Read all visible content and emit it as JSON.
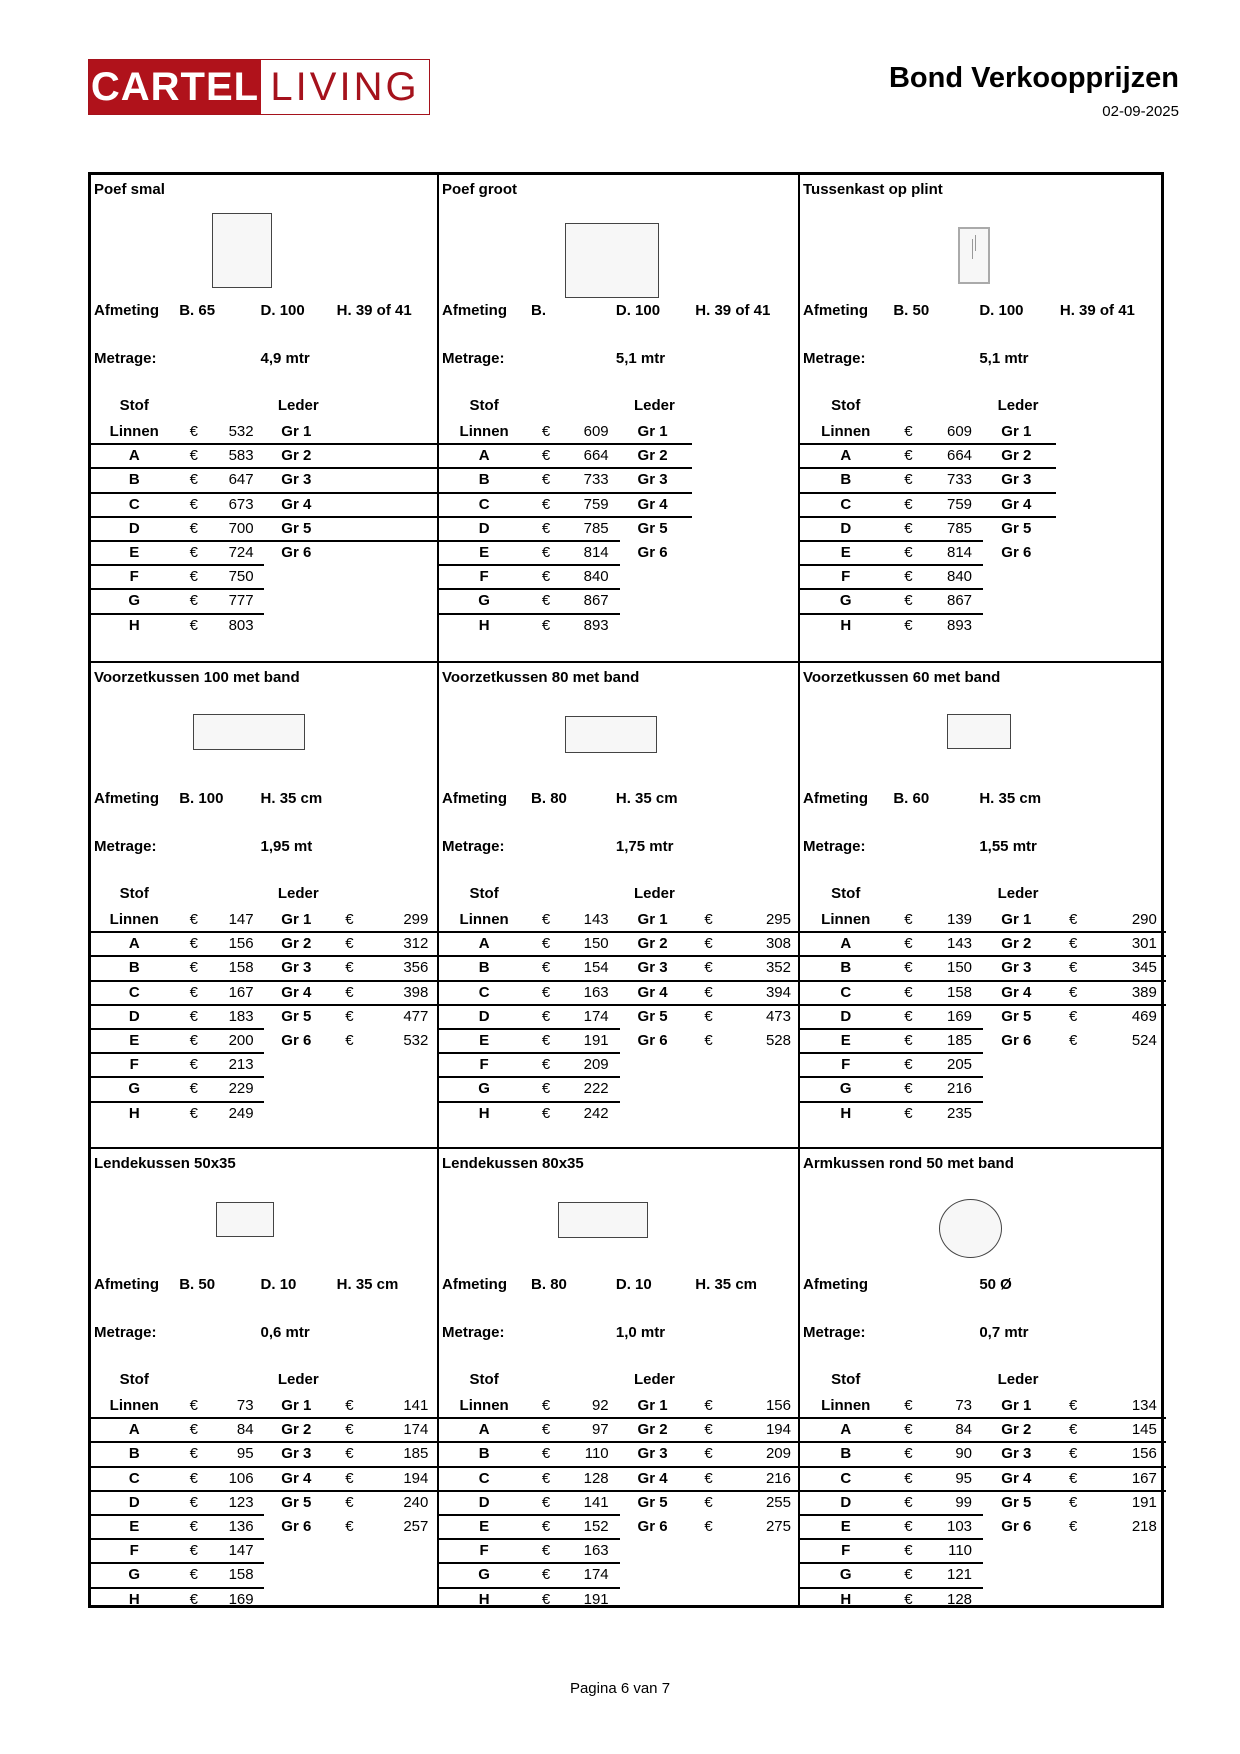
{
  "header": {
    "logo_left": "CARTEL",
    "logo_right": "LIVING",
    "title": "Bond Verkoopprijzen",
    "date": "02-09-2025"
  },
  "footer": {
    "page": "Pagina 6 van 7"
  },
  "currency": "€",
  "products": [
    {
      "title": "Poef smal",
      "shape": "rectangle",
      "afmeting": {
        "label": "Afmeting",
        "b": "B. 65",
        "d": "D. 100",
        "h": "H. 39 of 41"
      },
      "metrage": {
        "label": "Metrage:",
        "value": "4,9 mtr"
      },
      "header": {
        "stof": "Stof",
        "leder": "Leder"
      },
      "stof": [
        {
          "label": "Linnen",
          "price": "532"
        },
        {
          "label": "A",
          "price": "583"
        },
        {
          "label": "B",
          "price": "647"
        },
        {
          "label": "C",
          "price": "673"
        },
        {
          "label": "D",
          "price": "700"
        },
        {
          "label": "E",
          "price": "724"
        },
        {
          "label": "F",
          "price": "750"
        },
        {
          "label": "G",
          "price": "777"
        },
        {
          "label": "H",
          "price": "803"
        }
      ],
      "leder": [
        {
          "label": "Gr 1"
        },
        {
          "label": "Gr 2"
        },
        {
          "label": "Gr 3"
        },
        {
          "label": "Gr 4"
        },
        {
          "label": "Gr 5"
        },
        {
          "label": "Gr 6"
        }
      ]
    },
    {
      "title": "Poef groot",
      "shape": "rectangle",
      "afmeting": {
        "label": "Afmeting",
        "b": "B.",
        "d": "D. 100",
        "h": "H. 39 of 41"
      },
      "metrage": {
        "label": "Metrage:",
        "value": "5,1 mtr"
      },
      "header": {
        "stof": "Stof",
        "leder": "Leder"
      },
      "stof": [
        {
          "label": "Linnen",
          "price": "609"
        },
        {
          "label": "A",
          "price": "664"
        },
        {
          "label": "B",
          "price": "733"
        },
        {
          "label": "C",
          "price": "759"
        },
        {
          "label": "D",
          "price": "785"
        },
        {
          "label": "E",
          "price": "814"
        },
        {
          "label": "F",
          "price": "840"
        },
        {
          "label": "G",
          "price": "867"
        },
        {
          "label": "H",
          "price": "893"
        }
      ],
      "leder": [
        {
          "label": "Gr 1"
        },
        {
          "label": "Gr 2"
        },
        {
          "label": "Gr 3"
        },
        {
          "label": "Gr 4"
        },
        {
          "label": "Gr 5"
        },
        {
          "label": "Gr 6"
        }
      ]
    },
    {
      "title": "Tussenkast op plint",
      "shape": "cabinet",
      "afmeting": {
        "label": "Afmeting",
        "b": "B. 50",
        "d": "D. 100",
        "h": "H. 39 of 41"
      },
      "metrage": {
        "label": "Metrage:",
        "value": "5,1 mtr"
      },
      "header": {
        "stof": "Stof",
        "leder": "Leder"
      },
      "stof": [
        {
          "label": "Linnen",
          "price": "609"
        },
        {
          "label": "A",
          "price": "664"
        },
        {
          "label": "B",
          "price": "733"
        },
        {
          "label": "C",
          "price": "759"
        },
        {
          "label": "D",
          "price": "785"
        },
        {
          "label": "E",
          "price": "814"
        },
        {
          "label": "F",
          "price": "840"
        },
        {
          "label": "G",
          "price": "867"
        },
        {
          "label": "H",
          "price": "893"
        }
      ],
      "leder": [
        {
          "label": "Gr 1"
        },
        {
          "label": "Gr 2"
        },
        {
          "label": "Gr 3"
        },
        {
          "label": "Gr 4"
        },
        {
          "label": "Gr 5"
        },
        {
          "label": "Gr 6"
        }
      ]
    },
    {
      "title": "Voorzetkussen 100 met band",
      "shape": "rectangle",
      "afmeting": {
        "label": "Afmeting",
        "b": "B. 100",
        "d": "H. 35 cm",
        "h": ""
      },
      "metrage": {
        "label": "Metrage:",
        "value": "1,95 mt"
      },
      "header": {
        "stof": "Stof",
        "leder": "Leder"
      },
      "stof": [
        {
          "label": "Linnen",
          "price": "147"
        },
        {
          "label": "A",
          "price": "156"
        },
        {
          "label": "B",
          "price": "158"
        },
        {
          "label": "C",
          "price": "167"
        },
        {
          "label": "D",
          "price": "183"
        },
        {
          "label": "E",
          "price": "200"
        },
        {
          "label": "F",
          "price": "213"
        },
        {
          "label": "G",
          "price": "229"
        },
        {
          "label": "H",
          "price": "249"
        }
      ],
      "leder": [
        {
          "label": "Gr 1",
          "price": "299"
        },
        {
          "label": "Gr 2",
          "price": "312"
        },
        {
          "label": "Gr 3",
          "price": "356"
        },
        {
          "label": "Gr 4",
          "price": "398"
        },
        {
          "label": "Gr 5",
          "price": "477"
        },
        {
          "label": "Gr 6",
          "price": "532"
        }
      ]
    },
    {
      "title": "Voorzetkussen 80 met band",
      "shape": "rectangle",
      "afmeting": {
        "label": "Afmeting",
        "b": "B. 80",
        "d": "H. 35 cm",
        "h": ""
      },
      "metrage": {
        "label": "Metrage:",
        "value": "1,75 mtr"
      },
      "header": {
        "stof": "Stof",
        "leder": "Leder"
      },
      "stof": [
        {
          "label": "Linnen",
          "price": "143"
        },
        {
          "label": "A",
          "price": "150"
        },
        {
          "label": "B",
          "price": "154"
        },
        {
          "label": "C",
          "price": "163"
        },
        {
          "label": "D",
          "price": "174"
        },
        {
          "label": "E",
          "price": "191"
        },
        {
          "label": "F",
          "price": "209"
        },
        {
          "label": "G",
          "price": "222"
        },
        {
          "label": "H",
          "price": "242"
        }
      ],
      "leder": [
        {
          "label": "Gr 1",
          "price": "295"
        },
        {
          "label": "Gr 2",
          "price": "308"
        },
        {
          "label": "Gr 3",
          "price": "352"
        },
        {
          "label": "Gr 4",
          "price": "394"
        },
        {
          "label": "Gr 5",
          "price": "473"
        },
        {
          "label": "Gr 6",
          "price": "528"
        }
      ]
    },
    {
      "title": "Voorzetkussen 60 met band",
      "shape": "rectangle",
      "afmeting": {
        "label": "Afmeting",
        "b": "B. 60",
        "d": "H. 35 cm",
        "h": ""
      },
      "metrage": {
        "label": "Metrage:",
        "value": "1,55 mtr"
      },
      "header": {
        "stof": "Stof",
        "leder": "Leder"
      },
      "stof": [
        {
          "label": "Linnen",
          "price": "139"
        },
        {
          "label": "A",
          "price": "143"
        },
        {
          "label": "B",
          "price": "150"
        },
        {
          "label": "C",
          "price": "158"
        },
        {
          "label": "D",
          "price": "169"
        },
        {
          "label": "E",
          "price": "185"
        },
        {
          "label": "F",
          "price": "205"
        },
        {
          "label": "G",
          "price": "216"
        },
        {
          "label": "H",
          "price": "235"
        }
      ],
      "leder": [
        {
          "label": "Gr 1",
          "price": "290"
        },
        {
          "label": "Gr 2",
          "price": "301"
        },
        {
          "label": "Gr 3",
          "price": "345"
        },
        {
          "label": "Gr 4",
          "price": "389"
        },
        {
          "label": "Gr 5",
          "price": "469"
        },
        {
          "label": "Gr 6",
          "price": "524"
        }
      ]
    },
    {
      "title": "Lendekussen 50x35",
      "shape": "rectangle",
      "afmeting": {
        "label": "Afmeting",
        "b": "B. 50",
        "d": "D. 10",
        "h": "H. 35 cm"
      },
      "metrage": {
        "label": "Metrage:",
        "value": "0,6 mtr"
      },
      "header": {
        "stof": "Stof",
        "leder": "Leder"
      },
      "stof": [
        {
          "label": "Linnen",
          "price": "73"
        },
        {
          "label": "A",
          "price": "84"
        },
        {
          "label": "B",
          "price": "95"
        },
        {
          "label": "C",
          "price": "106"
        },
        {
          "label": "D",
          "price": "123"
        },
        {
          "label": "E",
          "price": "136"
        },
        {
          "label": "F",
          "price": "147"
        },
        {
          "label": "G",
          "price": "158"
        },
        {
          "label": "H",
          "price": "169"
        }
      ],
      "leder": [
        {
          "label": "Gr 1",
          "price": "141"
        },
        {
          "label": "Gr 2",
          "price": "174"
        },
        {
          "label": "Gr 3",
          "price": "185"
        },
        {
          "label": "Gr 4",
          "price": "194"
        },
        {
          "label": "Gr 5",
          "price": "240"
        },
        {
          "label": "Gr 6",
          "price": "257"
        }
      ]
    },
    {
      "title": "Lendekussen 80x35",
      "shape": "rectangle",
      "afmeting": {
        "label": "Afmeting",
        "b": "B. 80",
        "d": "D. 10",
        "h": "H. 35 cm"
      },
      "metrage": {
        "label": "Metrage:",
        "value": "1,0 mtr"
      },
      "header": {
        "stof": "Stof",
        "leder": "Leder"
      },
      "stof": [
        {
          "label": "Linnen",
          "price": "92"
        },
        {
          "label": "A",
          "price": "97"
        },
        {
          "label": "B",
          "price": "110"
        },
        {
          "label": "C",
          "price": "128"
        },
        {
          "label": "D",
          "price": "141"
        },
        {
          "label": "E",
          "price": "152"
        },
        {
          "label": "F",
          "price": "163"
        },
        {
          "label": "G",
          "price": "174"
        },
        {
          "label": "H",
          "price": "191"
        }
      ],
      "leder": [
        {
          "label": "Gr 1",
          "price": "156"
        },
        {
          "label": "Gr 2",
          "price": "194"
        },
        {
          "label": "Gr 3",
          "price": "209"
        },
        {
          "label": "Gr 4",
          "price": "216"
        },
        {
          "label": "Gr 5",
          "price": "255"
        },
        {
          "label": "Gr 6",
          "price": "275"
        }
      ]
    },
    {
      "title": "Armkussen rond 50 met band",
      "shape": "circle",
      "afmeting": {
        "label": "Afmeting",
        "b": "",
        "d": "50 Ø",
        "h": ""
      },
      "metrage": {
        "label": "Metrage:",
        "value": "0,7 mtr"
      },
      "header": {
        "stof": "Stof",
        "leder": "Leder"
      },
      "stof": [
        {
          "label": "Linnen",
          "price": "73"
        },
        {
          "label": "A",
          "price": "84"
        },
        {
          "label": "B",
          "price": "90"
        },
        {
          "label": "C",
          "price": "95"
        },
        {
          "label": "D",
          "price": "99"
        },
        {
          "label": "E",
          "price": "103"
        },
        {
          "label": "F",
          "price": "110"
        },
        {
          "label": "G",
          "price": "121"
        },
        {
          "label": "H",
          "price": "128"
        }
      ],
      "leder": [
        {
          "label": "Gr 1",
          "price": "134"
        },
        {
          "label": "Gr 2",
          "price": "145"
        },
        {
          "label": "Gr 3",
          "price": "156"
        },
        {
          "label": "Gr 4",
          "price": "167"
        },
        {
          "label": "Gr 5",
          "price": "191"
        },
        {
          "label": "Gr 6",
          "price": "218"
        }
      ]
    }
  ]
}
